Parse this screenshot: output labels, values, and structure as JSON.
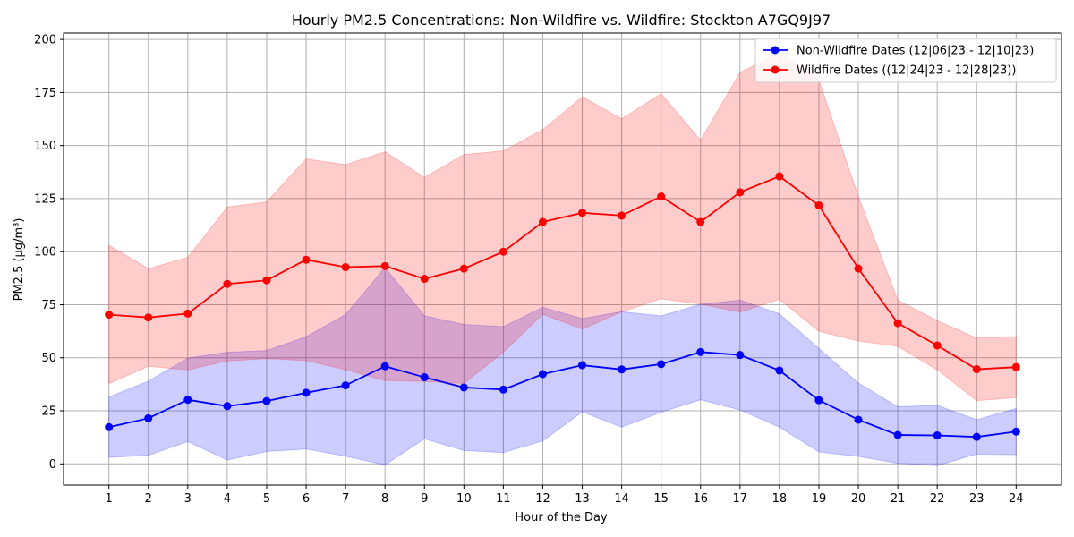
{
  "chart_data": {
    "type": "line",
    "title": "Hourly PM2.5 Concentrations: Non-Wildfire vs. Wildfire: Stockton A7GQ9J97",
    "xlabel": "Hour of the Day",
    "ylabel": "PM2.5 (µg/m³)",
    "x": [
      1,
      2,
      3,
      4,
      5,
      6,
      7,
      8,
      9,
      10,
      11,
      12,
      13,
      14,
      15,
      16,
      17,
      18,
      19,
      20,
      21,
      22,
      23,
      24
    ],
    "xlim": [
      -0.15,
      25.15
    ],
    "ylim": [
      -10,
      203
    ],
    "yticks": [
      0,
      25,
      50,
      75,
      100,
      125,
      150,
      175,
      200
    ],
    "grid": true,
    "legend_position": "top-right",
    "series": [
      {
        "name": "Non-Wildfire Dates (12|06|23 - 12|10|23)",
        "color": "#0000ff",
        "band_color": "#0000ff",
        "values": [
          17.3,
          21.5,
          30.2,
          27.2,
          29.6,
          33.5,
          37.0,
          46.0,
          40.8,
          36.0,
          35.0,
          42.3,
          46.5,
          44.5,
          47.0,
          52.7,
          51.3,
          44.0,
          30.0,
          20.8,
          13.6,
          13.4,
          12.7,
          15.2
        ],
        "lower": [
          3.0,
          4.0,
          10.5,
          1.8,
          5.8,
          7.0,
          3.6,
          -0.5,
          11.8,
          6.3,
          5.3,
          10.8,
          24.5,
          17.3,
          24.3,
          30.2,
          25.4,
          17.3,
          5.6,
          3.5,
          0.3,
          -0.8,
          4.6,
          4.3
        ],
        "upper": [
          31.5,
          39.0,
          49.8,
          52.6,
          53.4,
          59.9,
          70.4,
          92.5,
          69.8,
          65.7,
          64.7,
          73.8,
          68.5,
          71.7,
          69.7,
          75.2,
          77.2,
          70.7,
          54.4,
          38.1,
          26.9,
          27.6,
          20.8,
          26.1
        ]
      },
      {
        "name": "Wildfire Dates ((12|24|23 - 12|28|23))",
        "color": "#ff0000",
        "band_color": "#ff0000",
        "values": [
          70.3,
          69.0,
          70.8,
          84.8,
          86.5,
          96.2,
          92.7,
          93.2,
          87.2,
          92.0,
          100.0,
          114.0,
          118.3,
          117.0,
          126.0,
          114.0,
          128.0,
          135.5,
          121.8,
          92.0,
          66.3,
          55.8,
          44.6,
          45.6
        ],
        "lower": [
          37.8,
          46.0,
          44.3,
          48.5,
          49.6,
          48.7,
          44.4,
          39.3,
          38.8,
          37.9,
          52.6,
          70.5,
          63.5,
          71.6,
          77.8,
          75.3,
          71.5,
          77.5,
          62.5,
          57.9,
          55.4,
          44.3,
          29.8,
          31.2
        ],
        "upper": [
          103.0,
          92.0,
          97.3,
          121.0,
          123.5,
          143.7,
          141.0,
          147.1,
          135.0,
          145.8,
          147.5,
          157.5,
          173.0,
          162.6,
          174.5,
          152.5,
          184.5,
          193.5,
          181.0,
          126.0,
          77.2,
          67.5,
          59.3,
          60.0
        ]
      }
    ]
  }
}
